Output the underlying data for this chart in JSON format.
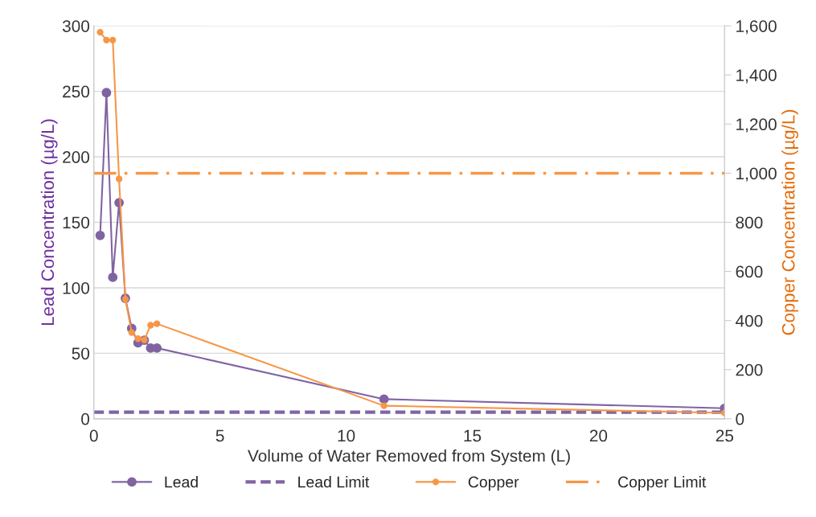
{
  "chart_data": {
    "type": "line",
    "xlabel": "Volume of Water Removed from System (L)",
    "ylabel": "Lead Concentration (µg/L)",
    "y2label": "Copper Concentration (µg/L)",
    "xlim": [
      0,
      25
    ],
    "xticks": [
      0,
      5,
      10,
      15,
      20,
      25
    ],
    "ylim": [
      0,
      300
    ],
    "yticks": [
      0,
      50,
      100,
      150,
      200,
      250,
      300
    ],
    "y2lim": [
      0,
      1600
    ],
    "y2ticks": [
      0,
      {
        "value": 200,
        "label": "200"
      },
      {
        "value": 400,
        "label": "400"
      },
      {
        "value": 600,
        "label": "600"
      },
      {
        "value": 800,
        "label": "800"
      },
      {
        "value": 1000,
        "label": "1,000"
      },
      {
        "value": 1200,
        "label": "1,200"
      },
      {
        "value": 1400,
        "label": "1,400"
      },
      {
        "value": 1600,
        "label": "1,600"
      }
    ],
    "grid": "y",
    "legend": "bottom",
    "marker": "circle",
    "series": [
      {
        "name": "Lead",
        "color": "#8064a2",
        "x": [
          0.25,
          0.5,
          0.75,
          1.0,
          1.25,
          1.5,
          1.75,
          2.0,
          2.25,
          2.5,
          11.5,
          25
        ],
        "values": [
          140,
          249,
          108,
          165,
          92,
          69,
          58,
          60,
          54,
          54,
          15,
          8
        ]
      },
      {
        "name": "Copper",
        "color": "#f79646",
        "axis": "y2",
        "x": [
          0.25,
          0.5,
          0.75,
          1.0,
          1.25,
          1.5,
          1.75,
          2.0,
          2.25,
          2.5,
          11.5,
          25
        ],
        "values": [
          1574,
          1542,
          1542,
          977,
          487,
          351,
          326,
          321,
          381,
          387,
          53,
          24
        ]
      }
    ],
    "ref_lines": [
      {
        "axis": "y",
        "value": 5,
        "label": "Lead Limit",
        "color": "#8064a2",
        "line_style": "dashed"
      },
      {
        "axis": "y2",
        "value": 1000,
        "label": "Copper Limit",
        "color": "#f79646",
        "line_style": "dashdot"
      }
    ]
  }
}
